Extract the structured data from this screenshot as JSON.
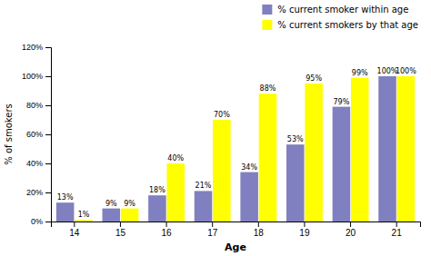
{
  "chart_data": {
    "type": "bar",
    "categories": [
      "14",
      "15",
      "16",
      "17",
      "18",
      "19",
      "20",
      "21"
    ],
    "series": [
      {
        "name": "% current smoker within age",
        "color": "#8080c0",
        "values": [
          13,
          9,
          18,
          21,
          34,
          53,
          79,
          100
        ],
        "value_labels": [
          "13%",
          "9%",
          "18%",
          "21%",
          "34%",
          "53%",
          "79%",
          "100%"
        ]
      },
      {
        "name": "% current smokers by that age",
        "color": "#ffff00",
        "values": [
          1,
          9,
          40,
          70,
          88,
          95,
          99,
          100
        ],
        "value_labels": [
          "1%",
          "9%",
          "40%",
          "70%",
          "88%",
          "95%",
          "99%",
          "100%"
        ]
      }
    ],
    "xlabel": "Age",
    "ylabel": "% of smokers",
    "ylim": [
      0,
      120
    ],
    "yticks": [
      {
        "value": 0,
        "label": "0%"
      },
      {
        "value": 20,
        "label": "20%"
      },
      {
        "value": 40,
        "label": "40%"
      },
      {
        "value": 60,
        "label": "60%"
      },
      {
        "value": 80,
        "label": "80%"
      },
      {
        "value": 100,
        "label": "100%"
      },
      {
        "value": 120,
        "label": "120%"
      }
    ],
    "grid": false,
    "legend": "upper right",
    "data_labels": true
  }
}
